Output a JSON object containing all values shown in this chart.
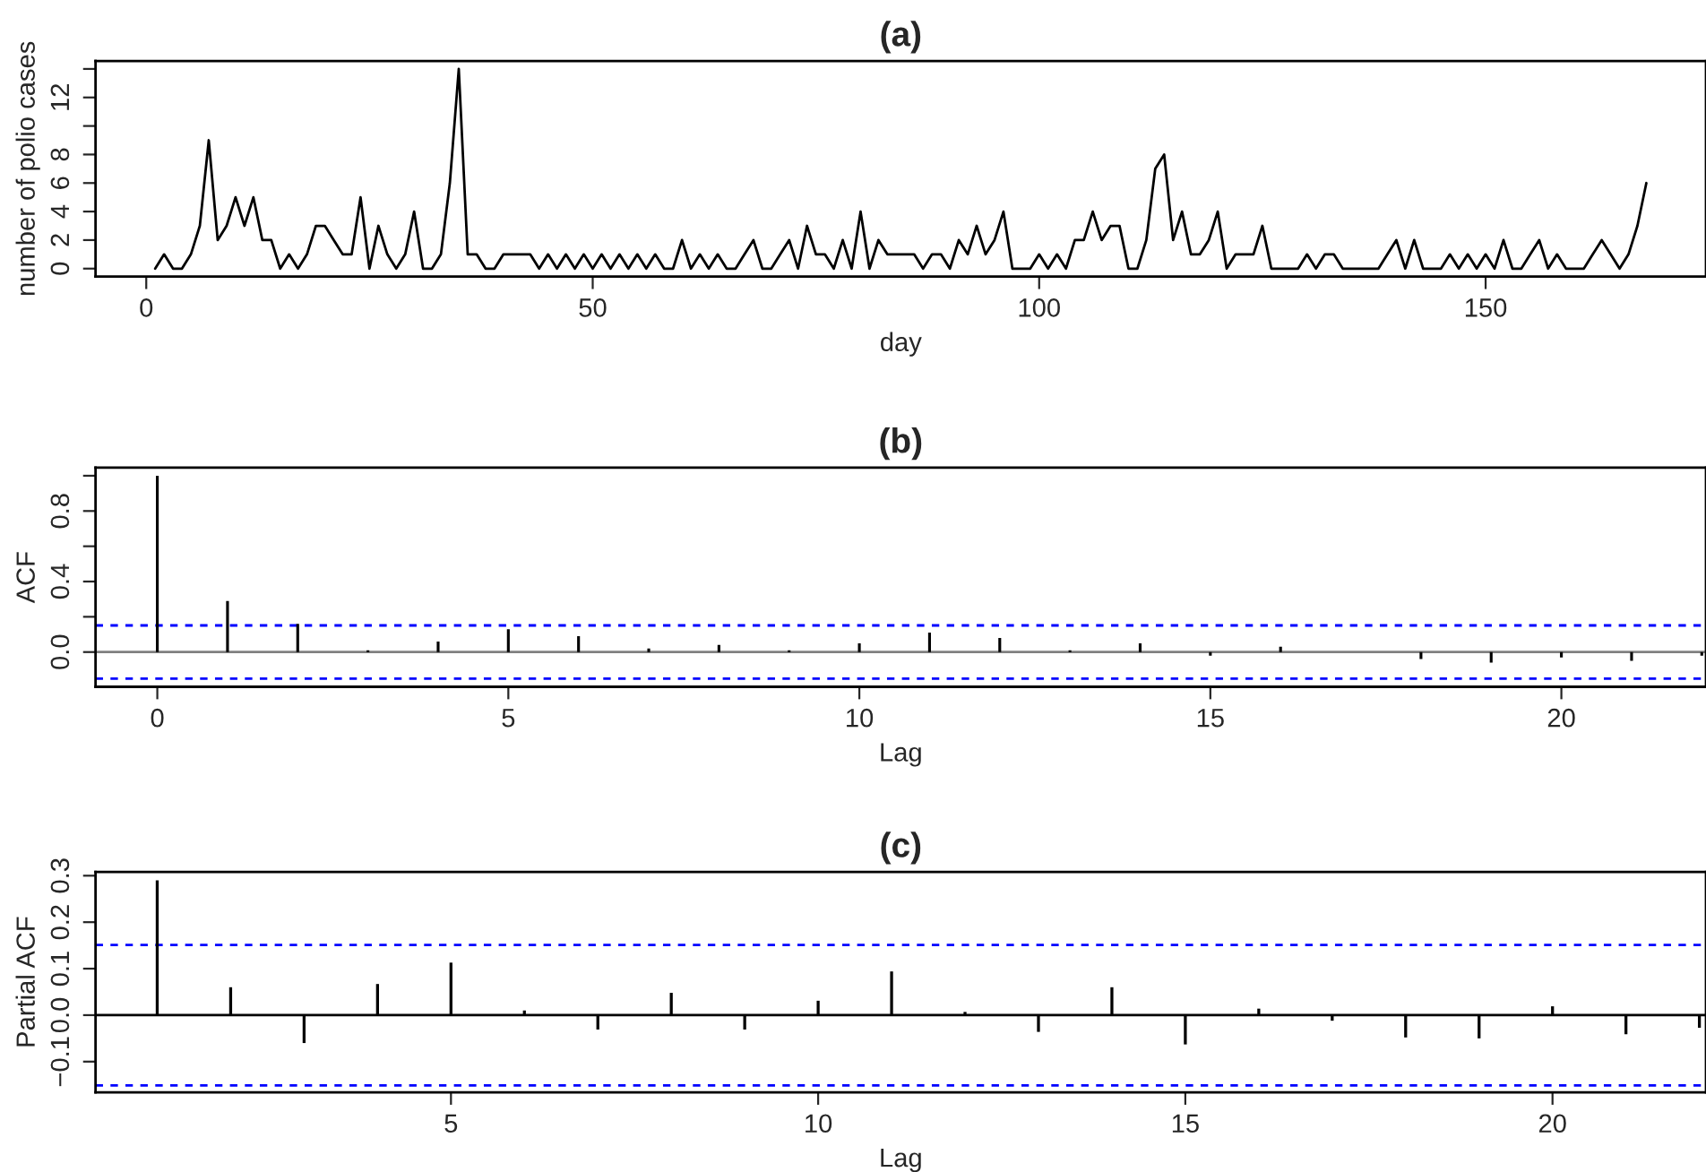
{
  "chart_data": [
    {
      "type": "line",
      "title": "(a)",
      "xlabel": "day",
      "ylabel": "number of polio cases",
      "xlim": [
        -5.68,
        174.68
      ],
      "ylim": [
        -0.56,
        14.56
      ],
      "xticks": [
        0,
        50,
        100,
        150
      ],
      "yticks": [
        0,
        2,
        4,
        6,
        8,
        {
          "value": 10,
          "label": null
        },
        12,
        {
          "value": 14,
          "label": null
        }
      ],
      "grid": false,
      "marker": "none",
      "line_style": "solid",
      "series": [
        {
          "color": "#000000",
          "x": [
            1,
            2,
            3,
            4,
            5,
            6,
            7,
            8,
            9,
            10,
            11,
            12,
            13,
            14,
            15,
            16,
            17,
            18,
            19,
            20,
            21,
            22,
            23,
            24,
            25,
            26,
            27,
            28,
            29,
            30,
            31,
            32,
            33,
            34,
            35,
            36,
            37,
            38,
            39,
            40,
            41,
            42,
            43,
            44,
            45,
            46,
            47,
            48,
            49,
            50,
            51,
            52,
            53,
            54,
            55,
            56,
            57,
            58,
            59,
            60,
            61,
            62,
            63,
            64,
            65,
            66,
            67,
            68,
            69,
            70,
            71,
            72,
            73,
            74,
            75,
            76,
            77,
            78,
            79,
            80,
            81,
            82,
            83,
            84,
            85,
            86,
            87,
            88,
            89,
            90,
            91,
            92,
            93,
            94,
            95,
            96,
            97,
            98,
            99,
            100,
            101,
            102,
            103,
            104,
            105,
            106,
            107,
            108,
            109,
            110,
            111,
            112,
            113,
            114,
            115,
            116,
            117,
            118,
            119,
            120,
            121,
            122,
            123,
            124,
            125,
            126,
            127,
            128,
            129,
            130,
            131,
            132,
            133,
            134,
            135,
            136,
            137,
            138,
            139,
            140,
            141,
            142,
            143,
            144,
            145,
            146,
            147,
            148,
            149,
            150,
            151,
            152,
            153,
            154,
            155,
            156,
            157,
            158,
            159,
            160,
            161,
            162,
            163,
            164,
            165,
            166,
            167,
            168
          ],
          "values": [
            0,
            1,
            0,
            0,
            1,
            3,
            9,
            2,
            3,
            5,
            3,
            5,
            2,
            2,
            0,
            1,
            0,
            1,
            3,
            3,
            2,
            1,
            1,
            5,
            0,
            3,
            1,
            0,
            1,
            4,
            0,
            0,
            1,
            6,
            14,
            1,
            1,
            0,
            0,
            1,
            1,
            1,
            1,
            0,
            1,
            0,
            1,
            0,
            1,
            0,
            1,
            0,
            1,
            0,
            1,
            0,
            1,
            0,
            0,
            2,
            0,
            1,
            0,
            1,
            0,
            0,
            1,
            2,
            0,
            0,
            1,
            2,
            0,
            3,
            1,
            1,
            0,
            2,
            0,
            4,
            0,
            2,
            1,
            1,
            1,
            1,
            0,
            1,
            1,
            0,
            2,
            1,
            3,
            1,
            2,
            4,
            0,
            0,
            0,
            1,
            0,
            1,
            0,
            2,
            2,
            4,
            2,
            3,
            3,
            0,
            0,
            2,
            7,
            8,
            2,
            4,
            1,
            1,
            2,
            4,
            0,
            1,
            1,
            1,
            3,
            0,
            0,
            0,
            0,
            1,
            0,
            1,
            1,
            0,
            0,
            0,
            0,
            0,
            1,
            2,
            0,
            2,
            0,
            0,
            0,
            1,
            0,
            1,
            0,
            1,
            0,
            2,
            0,
            0,
            1,
            2,
            0,
            1,
            0,
            0,
            0,
            1,
            2,
            1,
            0,
            1,
            3,
            6
          ]
        }
      ]
    },
    {
      "type": "bar",
      "title": "(b)",
      "xlabel": "Lag",
      "ylabel": "ACF",
      "xlim": [
        -0.88,
        22.06
      ],
      "ylim": [
        -0.197,
        1.046
      ],
      "xticks": [
        0,
        5,
        10,
        15,
        20
      ],
      "yticks": [
        {
          "value": 0,
          "label": "0.0"
        },
        {
          "value": 0.2,
          "label": null
        },
        {
          "value": 0.4,
          "label": "0.4"
        },
        {
          "value": 0.6,
          "label": null
        },
        {
          "value": 0.8,
          "label": "0.8"
        },
        {
          "value": 1.0,
          "label": null
        }
      ],
      "grid": false,
      "ref_lines": [
        {
          "axis": "y",
          "value": 0,
          "color": "#808080",
          "line_style": "solid"
        },
        {
          "axis": "y",
          "value": 0.151,
          "color": "#0000ff",
          "line_style": "dashed"
        },
        {
          "axis": "y",
          "value": -0.151,
          "color": "#0000ff",
          "line_style": "dashed"
        }
      ],
      "series": [
        {
          "color": "#000000",
          "x": [
            0,
            1,
            2,
            3,
            4,
            5,
            6,
            7,
            8,
            9,
            10,
            11,
            12,
            13,
            14,
            15,
            16,
            17,
            18,
            19,
            20,
            21,
            22
          ],
          "values": [
            1.0,
            0.29,
            0.16,
            0.01,
            0.06,
            0.13,
            0.09,
            0.02,
            0.04,
            0.01,
            0.05,
            0.11,
            0.08,
            0.01,
            0.05,
            -0.02,
            0.03,
            null,
            -0.04,
            -0.06,
            -0.03,
            -0.05,
            -0.02
          ]
        }
      ]
    },
    {
      "type": "bar",
      "title": "(c)",
      "xlabel": "Lag",
      "ylabel": "Partial ACF",
      "xlim": [
        0.16,
        22.09
      ],
      "ylim": [
        -0.166,
        0.308
      ],
      "xticks": [
        5,
        10,
        15,
        20
      ],
      "yticks": [
        {
          "value": -0.1,
          "label": "−0.1"
        },
        {
          "value": 0,
          "label": "0.0"
        },
        {
          "value": 0.1,
          "label": "0.1"
        },
        {
          "value": 0.2,
          "label": "0.2"
        },
        {
          "value": 0.3,
          "label": "0.3"
        }
      ],
      "grid": false,
      "ref_lines": [
        {
          "axis": "y",
          "value": 0,
          "color": "#000000",
          "line_style": "solid"
        },
        {
          "axis": "y",
          "value": 0.151,
          "color": "#0000ff",
          "line_style": "dashed"
        },
        {
          "axis": "y",
          "value": -0.151,
          "color": "#0000ff",
          "line_style": "dashed"
        }
      ],
      "series": [
        {
          "color": "#000000",
          "x": [
            1,
            2,
            3,
            4,
            5,
            6,
            7,
            8,
            9,
            10,
            11,
            12,
            13,
            14,
            15,
            16,
            17,
            18,
            19,
            20,
            21,
            22
          ],
          "values": [
            0.29,
            0.06,
            -0.06,
            0.067,
            0.113,
            0.01,
            -0.031,
            0.048,
            -0.031,
            0.031,
            0.094,
            0.007,
            -0.036,
            0.06,
            -0.063,
            0.014,
            -0.012,
            -0.048,
            -0.05,
            0.019,
            -0.041,
            -0.027
          ]
        }
      ]
    }
  ]
}
